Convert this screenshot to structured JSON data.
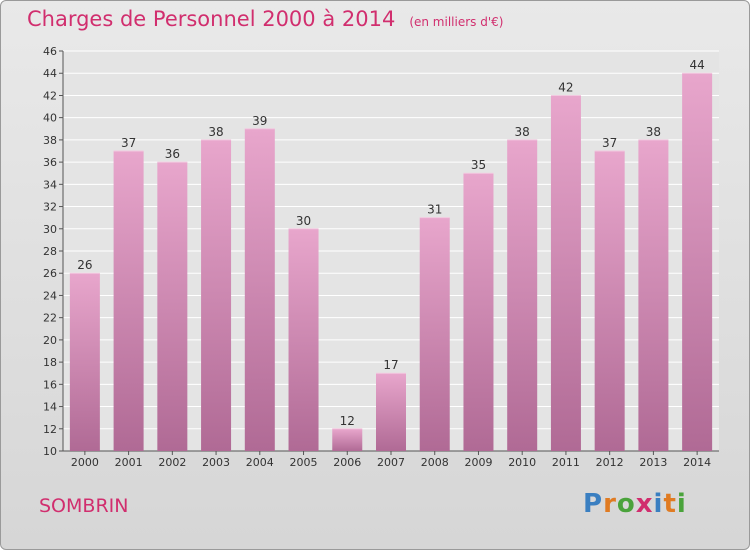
{
  "header": {
    "title": "Charges de Personnel 2000 à 2014",
    "unit": "(en milliers d'€)"
  },
  "footer": {
    "commune": "SOMBRIN",
    "logo_text": "Proxiti"
  },
  "colors": {
    "accent": "#d12e6e",
    "bar_light": "#e8a6cc",
    "bar_dark": "#b06a95"
  },
  "chart_data": {
    "type": "bar",
    "title": "Charges de Personnel 2000 à 2014",
    "subtitle": "(en milliers d'€)",
    "categories": [
      "2000",
      "2001",
      "2002",
      "2003",
      "2004",
      "2005",
      "2006",
      "2007",
      "2008",
      "2009",
      "2010",
      "2011",
      "2012",
      "2013",
      "2014"
    ],
    "values": [
      26,
      37,
      36,
      38,
      39,
      30,
      12,
      17,
      31,
      35,
      38,
      42,
      37,
      38,
      44
    ],
    "ylim": [
      10,
      46
    ],
    "yticks": [
      10,
      12,
      14,
      16,
      18,
      20,
      22,
      24,
      26,
      28,
      30,
      32,
      34,
      36,
      38,
      40,
      42,
      44,
      46
    ],
    "grid": true,
    "xlabel": "",
    "ylabel": ""
  }
}
